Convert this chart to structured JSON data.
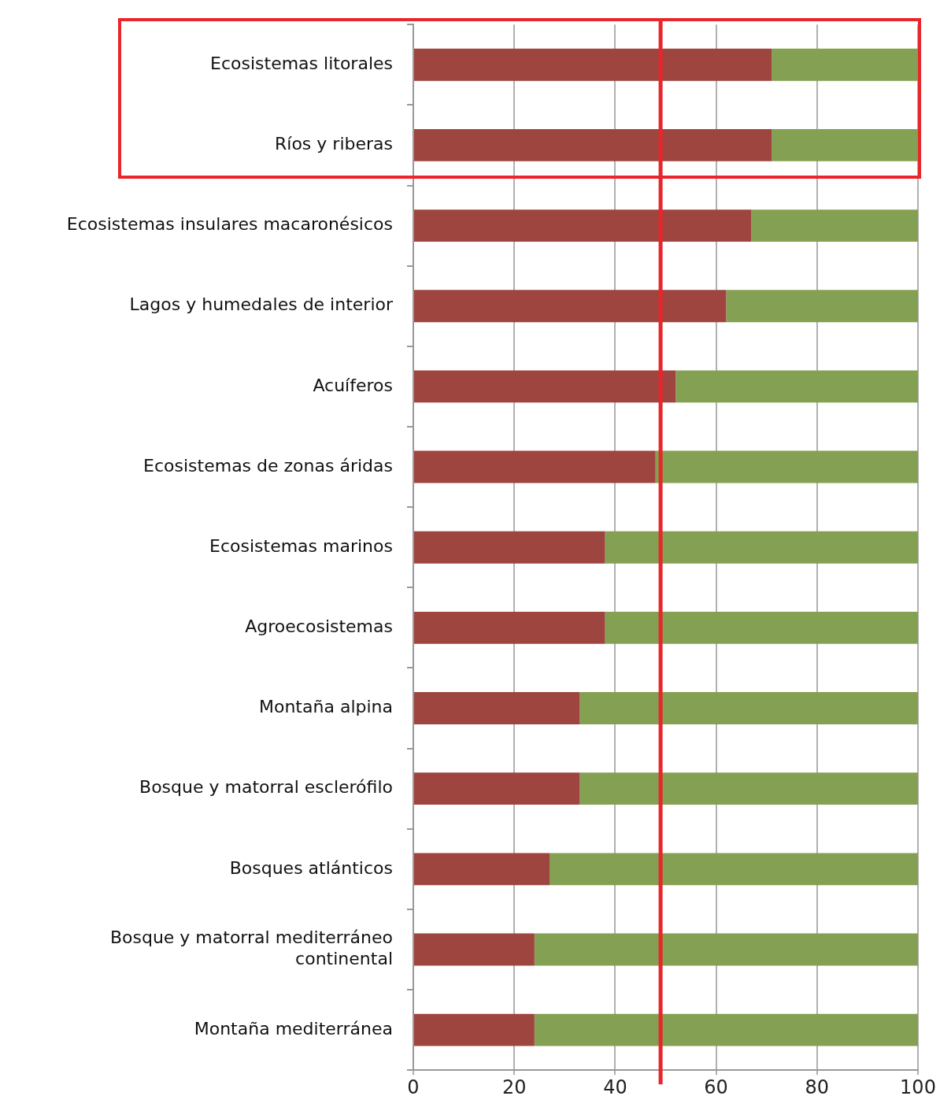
{
  "chart_data": {
    "type": "bar",
    "orientation": "horizontal",
    "stacked": true,
    "categories": [
      "Ecosistemas litorales",
      "Ríos y riberas",
      "Ecosistemas insulares macaronésicos",
      "Lagos y humedales de interior",
      "Acuíferos",
      "Ecosistemas de zonas áridas",
      "Ecosistemas marinos",
      "Agroecosistemas",
      "Montaña alpina",
      "Bosque y matorral esclerófilo",
      "Bosques atlánticos",
      "Bosque y matorral mediterráneo continental",
      "Montaña mediterránea"
    ],
    "series": [
      {
        "color": "#9e4540",
        "values": [
          71,
          71,
          67,
          62,
          52,
          48,
          38,
          38,
          33,
          33,
          27,
          24,
          24
        ]
      },
      {
        "color": "#84a052",
        "values": [
          29,
          29,
          33,
          38,
          48,
          52,
          62,
          62,
          67,
          67,
          73,
          76,
          76
        ]
      }
    ],
    "xlim": [
      0,
      100
    ],
    "xticks": [
      0,
      20,
      40,
      60,
      80,
      100
    ],
    "grid": "x",
    "legend": false,
    "ref_lines": [
      {
        "axis": "x",
        "value": 49,
        "color": "#e8262b"
      }
    ]
  }
}
